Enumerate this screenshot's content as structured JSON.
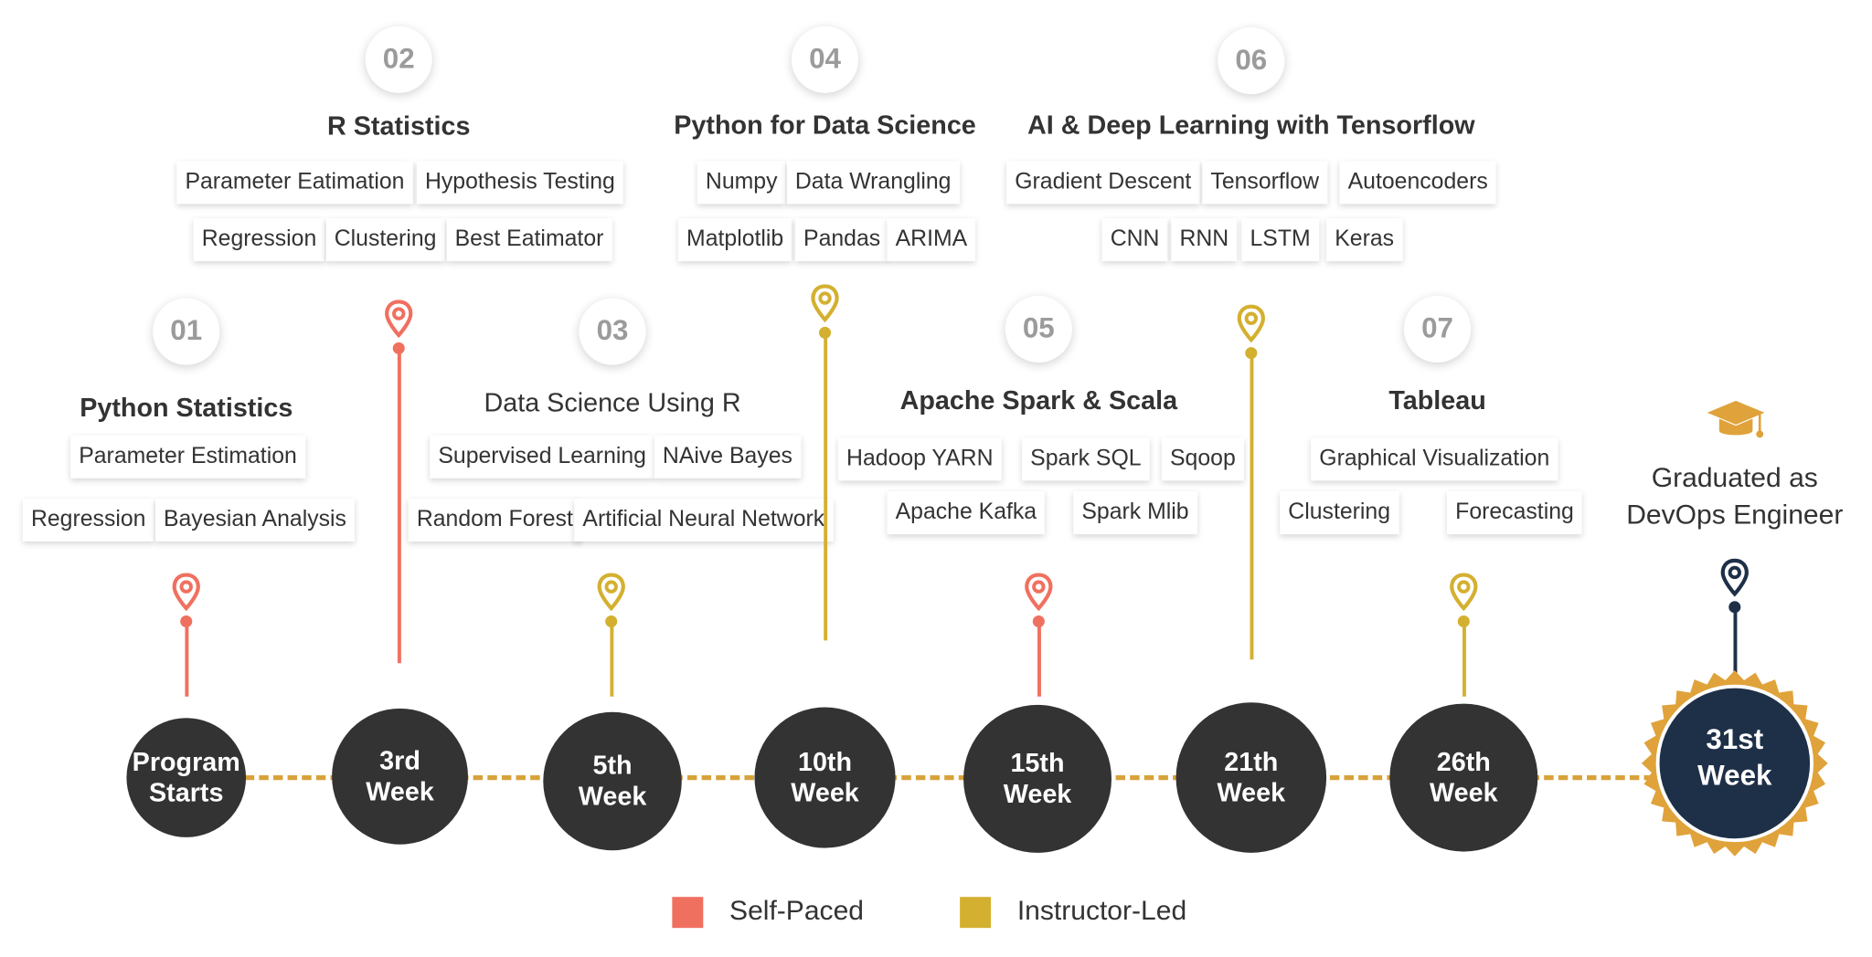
{
  "colors": {
    "self_paced": "#f07060",
    "instructor_led": "#d4b030",
    "graduated": "#1e3048",
    "milestone_circle": "#333333",
    "timeline_dash": "#d8a23a"
  },
  "milestones": [
    {
      "number": "01",
      "title": "Python Statistics",
      "type": "self_paced",
      "topics": [
        "Parameter Estimation",
        "Regression",
        "Bayesian Analysis"
      ],
      "week": [
        "Program",
        "Starts"
      ]
    },
    {
      "number": "02",
      "title": "R Statistics",
      "type": "self_paced",
      "topics": [
        "Parameter Eatimation",
        "Hypothesis Testing",
        "Regression",
        "Clustering",
        "Best Eatimator"
      ],
      "week": [
        "3rd",
        "Week"
      ]
    },
    {
      "number": "03",
      "title": "Data Science Using R",
      "type": "instructor_led",
      "topics": [
        "Supervised Learning",
        "NAive Bayes",
        "Random Forest",
        "Artificial Neural Network"
      ],
      "week": [
        "5th",
        "Week"
      ]
    },
    {
      "number": "04",
      "title": "Python for Data Science",
      "type": "instructor_led",
      "topics": [
        "Numpy",
        "Data Wrangling",
        "Matplotlib",
        "Pandas",
        "ARIMA"
      ],
      "week": [
        "10th",
        "Week"
      ]
    },
    {
      "number": "05",
      "title": "Apache Spark & Scala",
      "type": "self_paced",
      "topics": [
        "Hadoop YARN",
        "Spark SQL",
        "Sqoop",
        "Apache Kafka",
        "Spark Mlib"
      ],
      "week": [
        "15th",
        "Week"
      ]
    },
    {
      "number": "06",
      "title": "AI & Deep Learning with Tensorflow",
      "type": "instructor_led",
      "topics": [
        "Gradient Descent",
        "Tensorflow",
        "Autoencoders",
        "CNN",
        "RNN",
        "LSTM",
        "Keras"
      ],
      "week": [
        "21th",
        "Week"
      ]
    },
    {
      "number": "07",
      "title": "Tableau",
      "type": "instructor_led",
      "topics": [
        "Graphical Visualization",
        "Clustering",
        "Forecasting"
      ],
      "week": [
        "26th",
        "Week"
      ]
    }
  ],
  "final": {
    "icon": "graduation-cap-icon",
    "caption": [
      "Graduated as",
      "DevOps Engineer"
    ],
    "week": [
      "31st",
      "Week"
    ]
  },
  "legend": [
    {
      "label": "Self-Paced",
      "type": "self_paced"
    },
    {
      "label": "Instructor-Led",
      "type": "instructor_led"
    }
  ]
}
